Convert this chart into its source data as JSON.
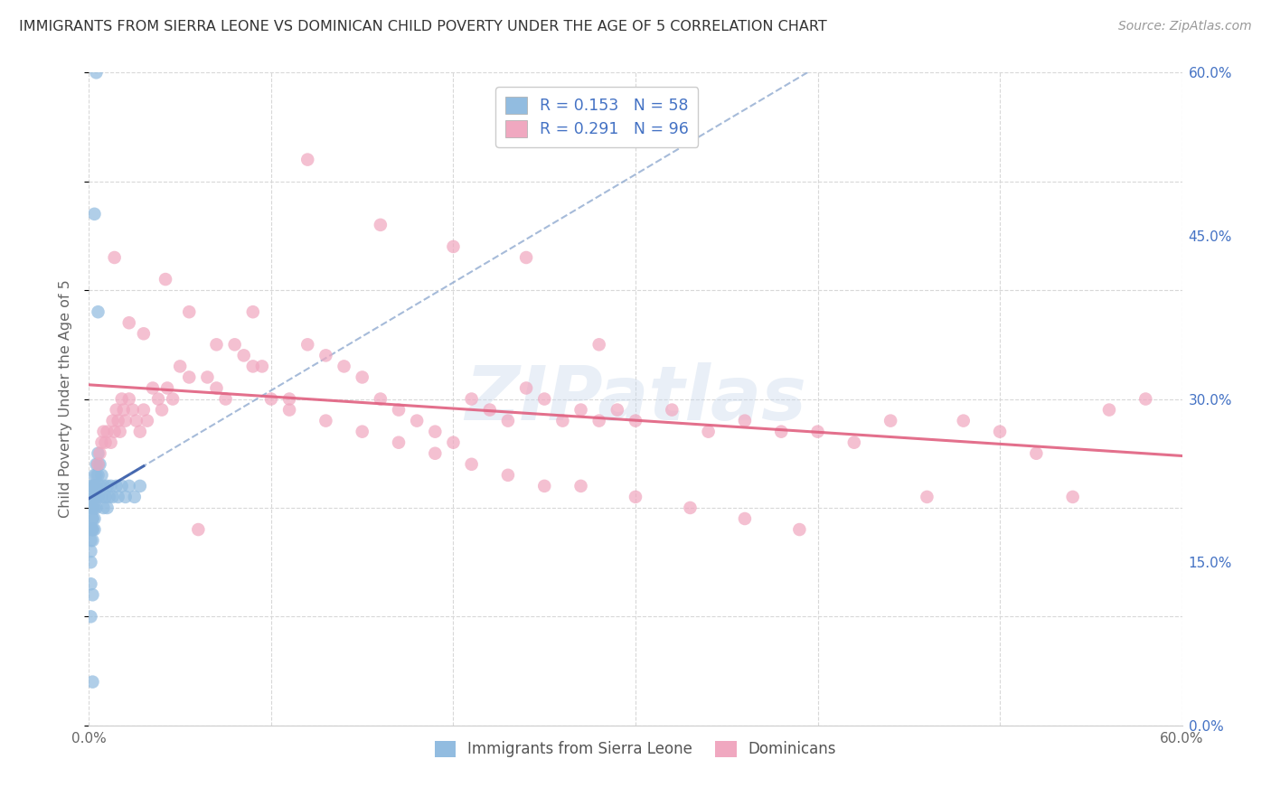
{
  "title": "IMMIGRANTS FROM SIERRA LEONE VS DOMINICAN CHILD POVERTY UNDER THE AGE OF 5 CORRELATION CHART",
  "source": "Source: ZipAtlas.com",
  "ylabel": "Child Poverty Under the Age of 5",
  "xlim": [
    0.0,
    0.6
  ],
  "ylim": [
    0.0,
    0.6
  ],
  "ytick_positions": [
    0.0,
    0.15,
    0.3,
    0.45,
    0.6
  ],
  "ytick_labels_right": [
    "0.0%",
    "15.0%",
    "30.0%",
    "45.0%",
    "60.0%"
  ],
  "xtick_positions": [
    0.0,
    0.1,
    0.2,
    0.3,
    0.4,
    0.5,
    0.6
  ],
  "xtick_labels": [
    "0.0%",
    "",
    "",
    "",
    "",
    "",
    "60.0%"
  ],
  "legend_r1": "R = 0.153",
  "legend_n1": "N = 58",
  "legend_r2": "R = 0.291",
  "legend_n2": "N = 96",
  "watermark": "ZIPatlas",
  "legend_label1": "Immigrants from Sierra Leone",
  "legend_label2": "Dominicans",
  "blue_scatter_color": "#92bce0",
  "pink_scatter_color": "#f0a8c0",
  "blue_solid_line_color": "#3a5eaa",
  "blue_dash_line_color": "#90aad0",
  "pink_line_color": "#e06080",
  "text_color_blue": "#4472c4",
  "text_color_title": "#333333",
  "text_color_source": "#999999",
  "grid_color": "#d8d8d8",
  "background_color": "#ffffff",
  "sl_x": [
    0.001,
    0.001,
    0.001,
    0.001,
    0.001,
    0.001,
    0.001,
    0.001,
    0.001,
    0.002,
    0.002,
    0.002,
    0.002,
    0.002,
    0.002,
    0.002,
    0.002,
    0.002,
    0.002,
    0.003,
    0.003,
    0.003,
    0.003,
    0.003,
    0.003,
    0.003,
    0.004,
    0.004,
    0.004,
    0.004,
    0.004,
    0.005,
    0.005,
    0.005,
    0.005,
    0.006,
    0.006,
    0.007,
    0.007,
    0.008,
    0.008,
    0.009,
    0.01,
    0.01,
    0.011,
    0.012,
    0.013,
    0.015,
    0.016,
    0.018,
    0.02,
    0.022,
    0.025,
    0.028,
    0.004,
    0.003,
    0.005,
    0.002
  ],
  "sl_y": [
    0.2,
    0.21,
    0.22,
    0.18,
    0.17,
    0.16,
    0.15,
    0.13,
    0.1,
    0.22,
    0.21,
    0.2,
    0.2,
    0.19,
    0.19,
    0.18,
    0.18,
    0.17,
    0.12,
    0.23,
    0.22,
    0.21,
    0.2,
    0.19,
    0.18,
    0.22,
    0.24,
    0.23,
    0.22,
    0.21,
    0.2,
    0.25,
    0.24,
    0.23,
    0.21,
    0.24,
    0.22,
    0.23,
    0.21,
    0.22,
    0.2,
    0.21,
    0.22,
    0.2,
    0.21,
    0.22,
    0.21,
    0.22,
    0.21,
    0.22,
    0.21,
    0.22,
    0.21,
    0.22,
    0.6,
    0.47,
    0.38,
    0.04
  ],
  "dom_x": [
    0.005,
    0.006,
    0.007,
    0.008,
    0.009,
    0.01,
    0.012,
    0.013,
    0.014,
    0.015,
    0.016,
    0.017,
    0.018,
    0.019,
    0.02,
    0.022,
    0.024,
    0.026,
    0.028,
    0.03,
    0.032,
    0.035,
    0.038,
    0.04,
    0.043,
    0.046,
    0.05,
    0.055,
    0.06,
    0.065,
    0.07,
    0.075,
    0.08,
    0.085,
    0.09,
    0.095,
    0.1,
    0.11,
    0.12,
    0.13,
    0.14,
    0.15,
    0.16,
    0.17,
    0.18,
    0.19,
    0.2,
    0.21,
    0.22,
    0.23,
    0.24,
    0.25,
    0.26,
    0.27,
    0.28,
    0.29,
    0.3,
    0.32,
    0.34,
    0.36,
    0.38,
    0.4,
    0.42,
    0.44,
    0.46,
    0.48,
    0.5,
    0.52,
    0.54,
    0.56,
    0.014,
    0.022,
    0.03,
    0.042,
    0.055,
    0.07,
    0.09,
    0.11,
    0.13,
    0.15,
    0.17,
    0.19,
    0.21,
    0.23,
    0.25,
    0.27,
    0.3,
    0.33,
    0.36,
    0.39,
    0.12,
    0.16,
    0.2,
    0.24,
    0.28,
    0.58
  ],
  "dom_y": [
    0.24,
    0.25,
    0.26,
    0.27,
    0.26,
    0.27,
    0.26,
    0.28,
    0.27,
    0.29,
    0.28,
    0.27,
    0.3,
    0.29,
    0.28,
    0.3,
    0.29,
    0.28,
    0.27,
    0.29,
    0.28,
    0.31,
    0.3,
    0.29,
    0.31,
    0.3,
    0.33,
    0.32,
    0.18,
    0.32,
    0.31,
    0.3,
    0.35,
    0.34,
    0.38,
    0.33,
    0.3,
    0.29,
    0.35,
    0.34,
    0.33,
    0.32,
    0.3,
    0.29,
    0.28,
    0.27,
    0.26,
    0.3,
    0.29,
    0.28,
    0.31,
    0.3,
    0.28,
    0.29,
    0.28,
    0.29,
    0.28,
    0.29,
    0.27,
    0.28,
    0.27,
    0.27,
    0.26,
    0.28,
    0.21,
    0.28,
    0.27,
    0.25,
    0.21,
    0.29,
    0.43,
    0.37,
    0.36,
    0.41,
    0.38,
    0.35,
    0.33,
    0.3,
    0.28,
    0.27,
    0.26,
    0.25,
    0.24,
    0.23,
    0.22,
    0.22,
    0.21,
    0.2,
    0.19,
    0.18,
    0.52,
    0.46,
    0.44,
    0.43,
    0.35,
    0.3
  ]
}
